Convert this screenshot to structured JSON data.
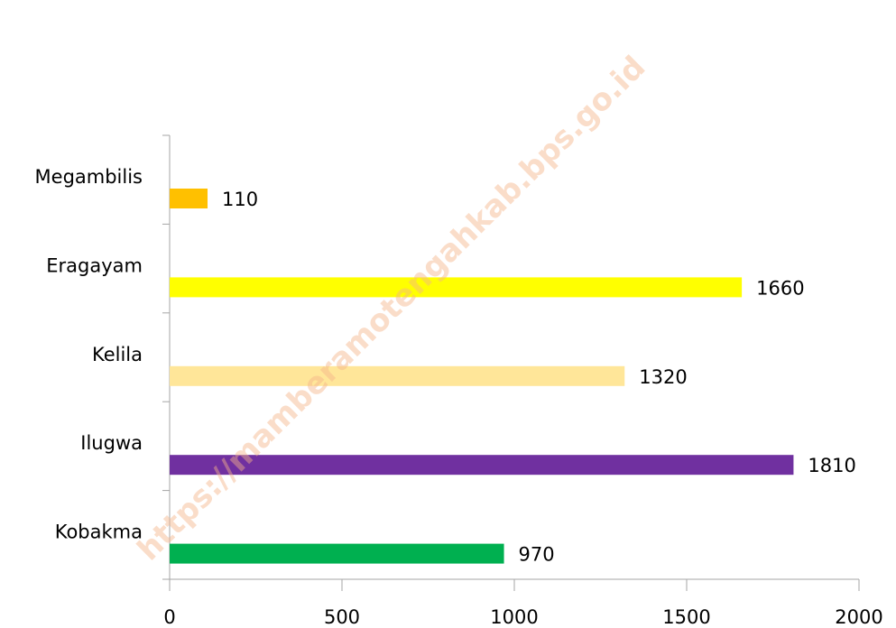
{
  "chart_data": {
    "type": "bar",
    "orientation": "horizontal",
    "categories": [
      "Kobakma",
      "Ilugwa",
      "Kelila",
      "Eragayam",
      "Megambilis"
    ],
    "values": [
      970,
      1810,
      1320,
      1660,
      110
    ],
    "colors": [
      "#00b050",
      "#7030a0",
      "#ffe699",
      "#ffff00",
      "#ffc000"
    ],
    "xlim": [
      0,
      2000
    ],
    "xticks": [
      0,
      500,
      1000,
      1500,
      2000
    ],
    "watermark": "https://mamberamotengahkab.bps.go.id"
  }
}
